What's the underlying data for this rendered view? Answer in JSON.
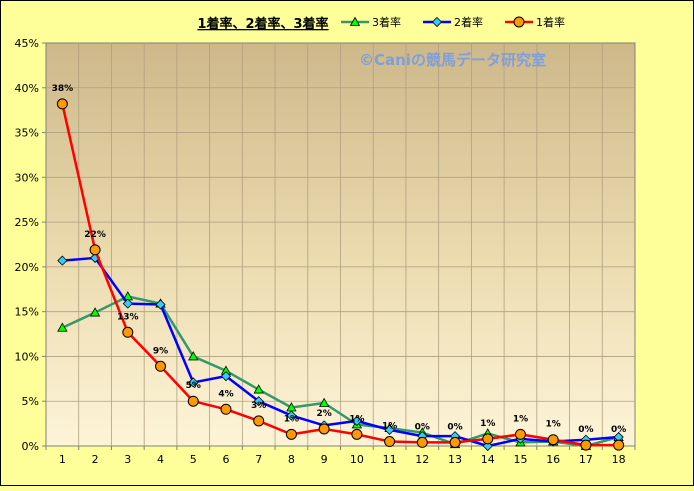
{
  "chart_data": {
    "type": "line",
    "title": "1着率、2着率、3着率",
    "watermark": "©Caniの競馬データ研究室",
    "x": [
      1,
      2,
      3,
      4,
      5,
      6,
      7,
      8,
      9,
      10,
      11,
      12,
      13,
      14,
      15,
      16,
      17,
      18
    ],
    "ylim": [
      0,
      45
    ],
    "yticks": [
      "0%",
      "5%",
      "10%",
      "15%",
      "20%",
      "25%",
      "30%",
      "35%",
      "40%",
      "45%"
    ],
    "grid": true,
    "legend_position": "top",
    "series": [
      {
        "name": "3着率",
        "color": "#339966",
        "marker": "triangle",
        "values": [
          13.2,
          14.9,
          16.7,
          15.9,
          10.0,
          8.4,
          6.3,
          4.3,
          4.8,
          2.4,
          2.0,
          1.5,
          0.2,
          1.4,
          0.4,
          0.5,
          0.0,
          1.0
        ]
      },
      {
        "name": "2着率",
        "color": "#0000ff",
        "marker": "diamond",
        "values": [
          20.7,
          21.0,
          15.9,
          15.8,
          7.1,
          7.8,
          5.0,
          3.4,
          2.3,
          2.8,
          1.8,
          1.1,
          1.1,
          0.0,
          0.8,
          0.5,
          0.7,
          1.0
        ]
      },
      {
        "name": "1着率",
        "color": "#ff0000",
        "marker": "circle",
        "values": [
          38.2,
          21.9,
          12.7,
          8.9,
          5.0,
          4.1,
          2.8,
          1.3,
          1.9,
          1.3,
          0.5,
          0.4,
          0.4,
          0.8,
          1.3,
          0.7,
          0.1,
          0.1
        ],
        "labels": [
          "38%",
          "22%",
          "13%",
          "9%",
          "5%",
          "4%",
          "3%",
          "1%",
          "2%",
          "1%",
          "1%",
          "0%",
          "0%",
          "1%",
          "1%",
          "1%",
          "0%",
          "0%"
        ]
      }
    ]
  }
}
